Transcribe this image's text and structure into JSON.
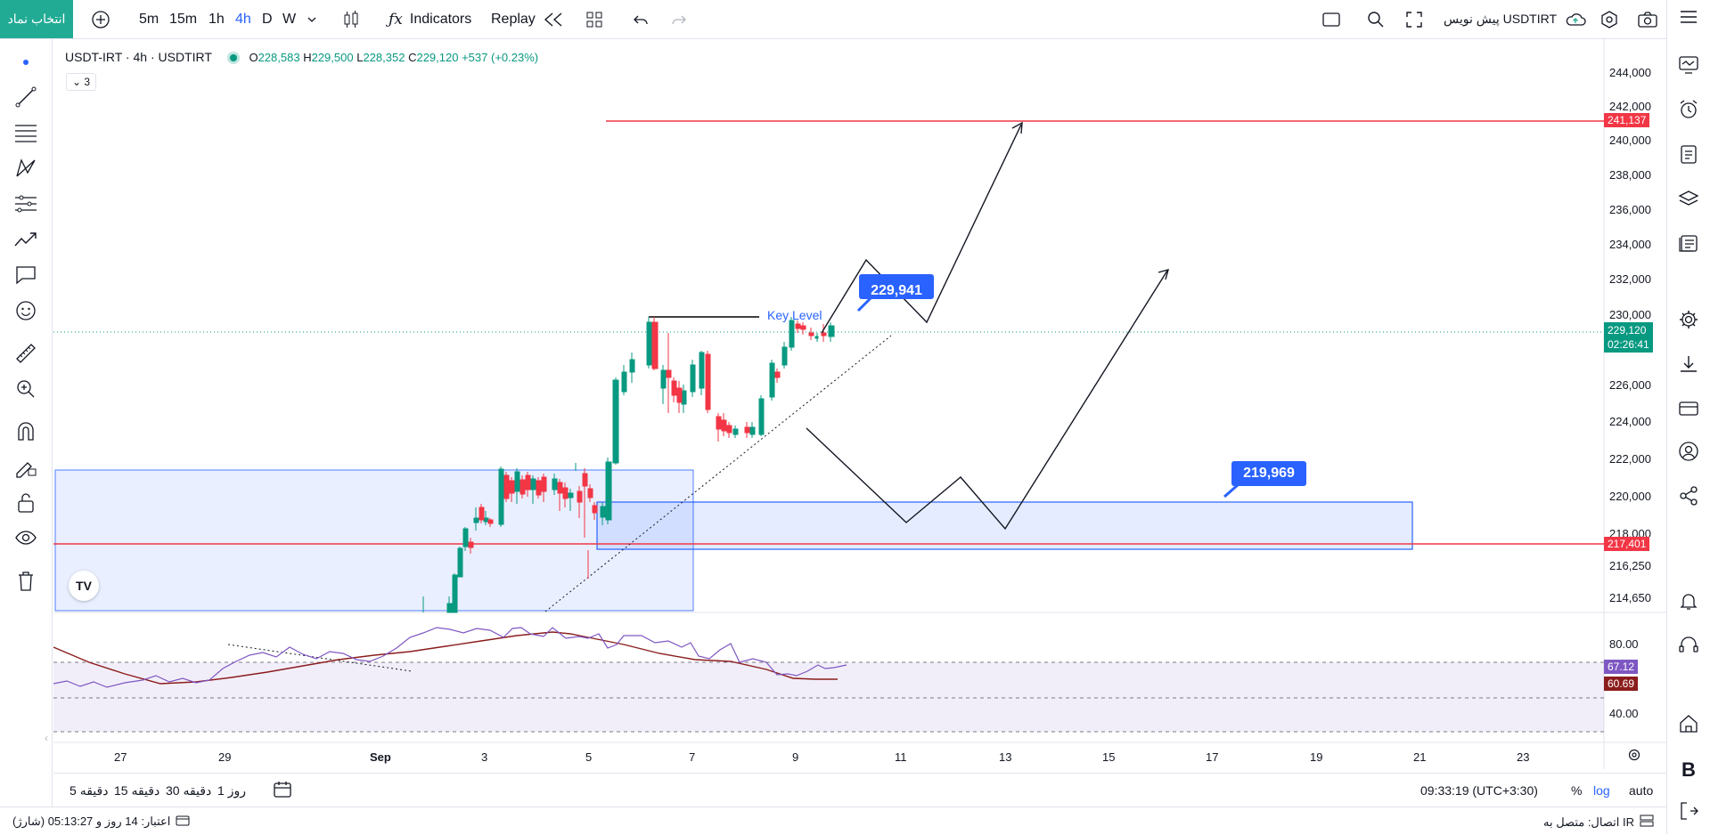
{
  "colors": {
    "accent": "#2962ff",
    "up": "#089981",
    "down": "#f23645",
    "symbol_button": "#22ab94",
    "zone_fill": "#2962ff",
    "rsi_line": "#7e57c2",
    "rsi_ma": "#8b1c1c"
  },
  "topbar": {
    "symbol_button": "انتخاب نماد",
    "intervals": [
      "5m",
      "15m",
      "1h",
      "4h",
      "D",
      "W"
    ],
    "active_interval": "4h",
    "indicators_label": "Indicators",
    "replay_label": "Replay",
    "publish_label": "پیش نویس USDTIRT"
  },
  "legend": {
    "title": "USDT-IRT · 4h · USDTIRT",
    "open_label": "O",
    "open": "228,583",
    "high_label": "H",
    "high": "229,500",
    "low_label": "L",
    "low": "228,352",
    "close_label": "C",
    "close": "229,120",
    "change": "+537 (+0.23%)",
    "collapsed_count": "3"
  },
  "price_axis": {
    "ticks": [
      "244,000",
      "242,000",
      "240,000",
      "238,000",
      "236,000",
      "234,000",
      "232,000",
      "230,000",
      "226,000",
      "224,000",
      "222,000",
      "220,000",
      "218,000",
      "216,250",
      "214,650"
    ],
    "badge_top": "241,137",
    "badge_last": "229,120",
    "badge_countdown": "02:26:41",
    "badge_bottom": "217,401"
  },
  "rsi_axis": {
    "ticks": [
      "80.00",
      "40.00"
    ],
    "badge_rsi": "67.12",
    "badge_ma": "60.69"
  },
  "time_axis": {
    "ticks": [
      "27",
      "29",
      "Sep",
      "3",
      "5",
      "7",
      "9",
      "11",
      "13",
      "15",
      "17",
      "19",
      "21",
      "23"
    ]
  },
  "annotations": {
    "key_level": "Key Level",
    "callout_upper": "229,941",
    "callout_lower": "219,969",
    "logo": "TV"
  },
  "bottombar": {
    "ranges": [
      "5 دقیقه",
      "15 دقیقه",
      "30 دقیقه",
      "1 روز"
    ],
    "clock": "09:33:19 (UTC+3:30)",
    "percent": "%",
    "log": "log",
    "auto": "auto"
  },
  "statusbar": {
    "connection": "اتصال: متصل به IR",
    "credit": "اعتبار: 14 روز و 05:13:27 (شارژ)"
  }
}
